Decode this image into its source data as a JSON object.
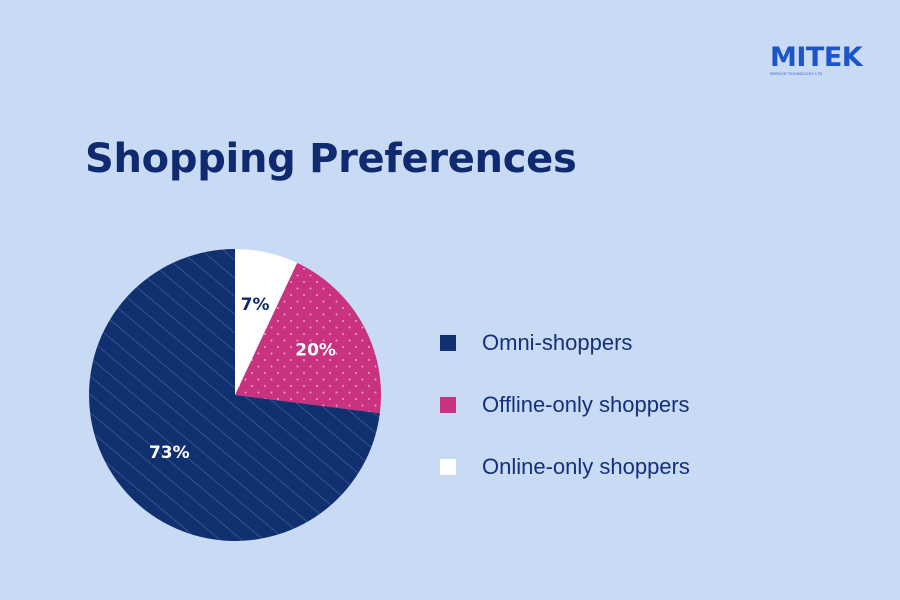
{
  "logo": {
    "name": "MITEK",
    "tagline": "SERVICE TECHNOLOGY LTD"
  },
  "chart_data": {
    "type": "pie",
    "title": "Shopping Preferences",
    "slices": [
      {
        "label": "Online-only shoppers",
        "value": 7,
        "display": "7%",
        "color": "#ffffff",
        "pattern": "none",
        "text_color": "#102a70"
      },
      {
        "label": "Offline-only shoppers",
        "value": 20,
        "display": "20%",
        "color": "#c8327e",
        "pattern": "dots",
        "text_color": "#ffffff"
      },
      {
        "label": "Omni-shoppers",
        "value": 73,
        "display": "73%",
        "color": "#10306f",
        "pattern": "stripes",
        "text_color": "#ffffff"
      }
    ],
    "legend": {
      "placement": "right",
      "order": [
        "Omni-shoppers",
        "Offline-only shoppers",
        "Online-only shoppers"
      ]
    }
  }
}
